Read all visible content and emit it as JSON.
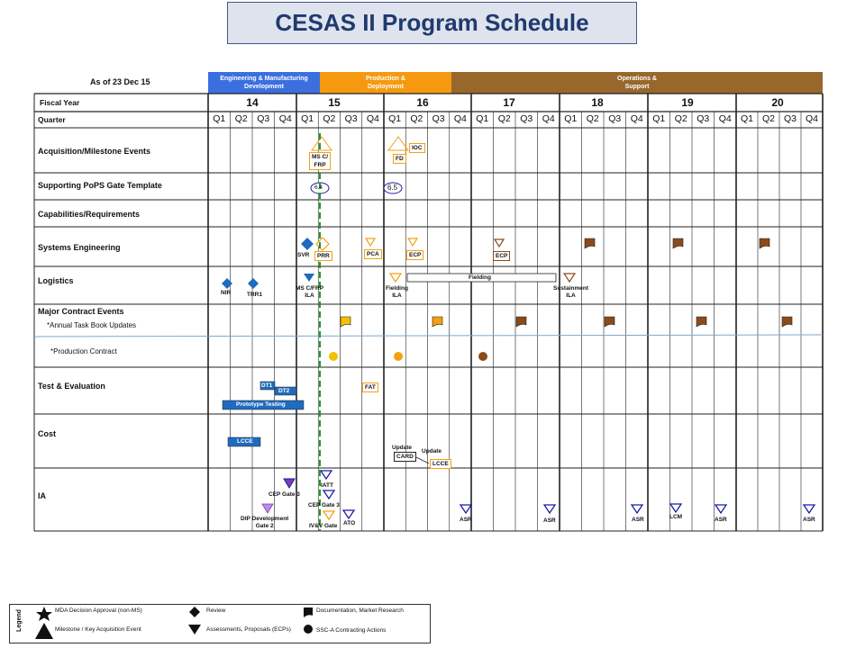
{
  "title": "CESAS II Program Schedule",
  "as_of": "As of 23 Dec 15",
  "phases": [
    {
      "label": "Engineering & Manufacturing\nDevelopment",
      "color": "#3b6fe0"
    },
    {
      "label": "Production  &\nDeployment",
      "color": "#f59a10"
    },
    {
      "label": "Operations &\nSupport",
      "color": "#98672c"
    }
  ],
  "rows": {
    "fiscal_year": "Fiscal Year",
    "quarter": "Quarter",
    "acq": "Acquisition/Milestone Events",
    "pops": "Supporting PoPS Gate Template",
    "cap": "Capabilities/Requirements",
    "se": "Systems Engineering",
    "log": "Logistics",
    "mce": "Major Contract Events",
    "atbu": "*Annual  Task Book Updates",
    "pc": "*Production  Contract",
    "te": "Test & Evaluation",
    "cost": "Cost",
    "ia": "IA"
  },
  "years": [
    "14",
    "15",
    "16",
    "17",
    "18",
    "19",
    "20"
  ],
  "quarters": [
    "Q1",
    "Q2",
    "Q3",
    "Q4"
  ],
  "labels": {
    "ms_c_frp": "MS C/\nFRP",
    "fd": "FD",
    "ioc": "IOC",
    "gate_64": "6.4",
    "gate_65": "6.5",
    "svr": "SVR",
    "prr": "PRR",
    "pca": "PCA",
    "ecp": "ECP",
    "ecp2": "ECP",
    "nir": "NIR",
    "trr1": "TRR1",
    "ms_c_frp_ila": "MS C/FRP\nILA",
    "fielding_ila": "Fielding\nILA",
    "fielding": "Fielding",
    "sustainment_ila": "Sustainment\nILA",
    "dt1": "DT1",
    "dt2": "DT2",
    "prototype_testing": "Prototype Testing",
    "fat": "FAT",
    "lcce": "LCCE",
    "update1": "Update",
    "card": "CARD",
    "update2": "Update",
    "lcce2": "LCCE",
    "cep_gate3_a": "CEP Gate 3",
    "dip": "DIP Development\nGate 2",
    "att": "IATT",
    "cep_gate3_b": "CEP Gate 3",
    "ivv": "IV&V Gate",
    "ato": "ATO",
    "asr": "ASR",
    "lcm": "LCM"
  },
  "legend": {
    "title": "Legend",
    "items": [
      "MDA Decision Approval (non-MS)",
      "Milestone / Key Acquisition Event",
      "Review",
      "Assessments, Proposals (ECPs)",
      "Documentation, Market Research",
      "SSC-A Contracting Actions"
    ]
  },
  "colors": {
    "blue": "#1f6bbf",
    "orange": "#f5a011",
    "brown": "#8b4a1a",
    "navy": "#1a1aa8",
    "purple": "#7b3fb0",
    "green": "#1f9a28",
    "ltblue_line": "#7fa7c9"
  }
}
